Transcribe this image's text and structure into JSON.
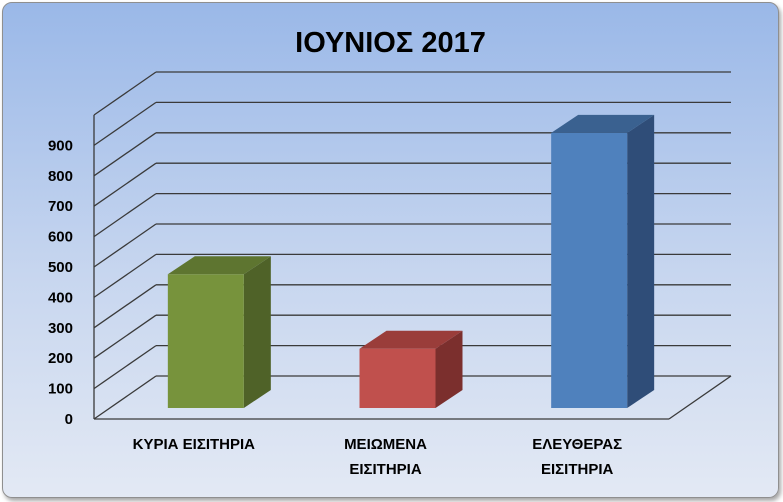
{
  "chart_data": {
    "type": "bar",
    "title": "ΙΟΥΝΙΟΣ 2017",
    "categories": [
      "ΚΥΡΙΑ ΕΙΣΙΤΗΡΙΑ",
      "ΜΕΙΩΜΕΝΑ ΕΙΣΙΤΗΡΙΑ",
      "ΕΛΕΥΘΕΡΑΣ ΕΙΣΙΤΗΡΙΑ"
    ],
    "category_lines": [
      [
        "ΚΥΡΙΑ ΕΙΣΙΤΗΡΙΑ"
      ],
      [
        "ΜΕΙΩΜΕΝΑ",
        "ΕΙΣΙΤΗΡΙΑ"
      ],
      [
        "ΕΛΕΥΘΕΡΑΣ",
        "ΕΙΣΙΤΗΡΙΑ"
      ]
    ],
    "values": [
      440,
      195,
      905
    ],
    "colors": {
      "front": [
        "#77933c",
        "#c0504d",
        "#4f81bd"
      ],
      "side": [
        "#4f6228",
        "#7b2f2d",
        "#2f4d78"
      ],
      "top": [
        "#5e7530",
        "#9a3d3a",
        "#3a6190"
      ]
    },
    "yticks": [
      0,
      100,
      200,
      300,
      400,
      500,
      600,
      700,
      800,
      900
    ],
    "ylim": [
      0,
      1000
    ],
    "xlabel": "",
    "ylabel": "",
    "grid": true
  }
}
